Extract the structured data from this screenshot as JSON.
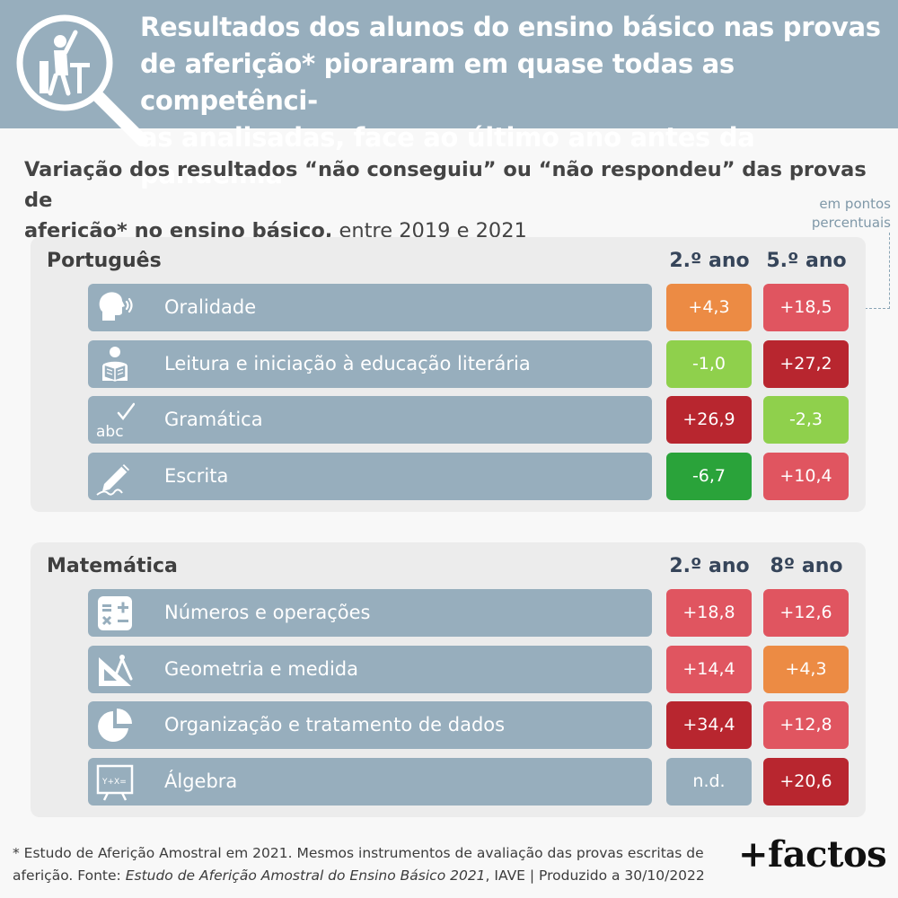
{
  "header": {
    "title": "Resultados dos alunos do ensino básico nas provas de aferição* pioraram em quase todas as competências analisadas, face ao último ano antes da pandemia",
    "title_lines": [
      "Resultados dos alunos do ensino básico nas provas",
      "de aferição* pioraram em quase todas as competênci-",
      "as analisadas, face ao último ano antes da pandemia"
    ],
    "icon": "student-magnifier-icon"
  },
  "subtitle": {
    "bold_line1": "Variação dos resultados “não conseguiu” ou “não respondeu” das provas de",
    "bold_line2": "aferição* no ensino básico,",
    "normal": " entre 2019 e 2021"
  },
  "unit_note": {
    "line1": "em pontos",
    "line2": "percentuais"
  },
  "colors": {
    "dark_red": "#b8262f",
    "red": "#e05560",
    "orange": "#ec8b44",
    "light_green": "#8fd04c",
    "dark_green": "#2aa33a",
    "na": "#97aebd",
    "row_bar": "#97aebd"
  },
  "chart_data": [
    {
      "type": "table",
      "title": "Português",
      "columns": [
        "2.º ano",
        "5.º ano"
      ],
      "rows": [
        {
          "label": "Oralidade",
          "icon": "speaking-head-icon",
          "values": [
            "+4,3",
            "+18,5"
          ],
          "colors": [
            "orange",
            "red"
          ]
        },
        {
          "label": "Leitura e iniciação à educação literária",
          "icon": "reading-person-icon",
          "values": [
            "-1,0",
            "+27,2"
          ],
          "colors": [
            "light_green",
            "dark_red"
          ]
        },
        {
          "label": "Gramática",
          "icon": "abc-check-icon",
          "values": [
            "+26,9",
            "-2,3"
          ],
          "colors": [
            "dark_red",
            "light_green"
          ]
        },
        {
          "label": "Escrita",
          "icon": "pencil-icon",
          "values": [
            "-6,7",
            "+10,4"
          ],
          "colors": [
            "dark_green",
            "red"
          ]
        }
      ]
    },
    {
      "type": "table",
      "title": "Matemática",
      "columns": [
        "2.º ano",
        "8º ano"
      ],
      "rows": [
        {
          "label": "Números e operações",
          "icon": "calculator-icon",
          "values": [
            "+18,8",
            "+12,6"
          ],
          "colors": [
            "red",
            "red"
          ]
        },
        {
          "label": "Geometria e medida",
          "icon": "compass-ruler-icon",
          "values": [
            "+14,4",
            "+4,3"
          ],
          "colors": [
            "red",
            "orange"
          ]
        },
        {
          "label": "Organização e tratamento de dados",
          "icon": "pie-chart-icon",
          "values": [
            "+34,4",
            "+12,8"
          ],
          "colors": [
            "dark_red",
            "red"
          ]
        },
        {
          "label": "Álgebra",
          "icon": "algebra-board-icon",
          "values": [
            "n.d.",
            "+20,6"
          ],
          "colors": [
            "na",
            "dark_red"
          ]
        }
      ]
    }
  ],
  "footer": {
    "note_part1": "* Estudo de Aferição Amostral em 2021. Mesmos instrumentos de avaliação das provas escritas de aferição. Fonte: ",
    "note_source": "Estudo de Aferição Amostral do Ensino Básico 2021",
    "note_part2": ", IAVE | Produzido a 30/10/2022",
    "logo": "+factos"
  }
}
